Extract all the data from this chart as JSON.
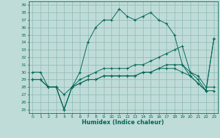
{
  "xlabel": "Humidex (Indice chaleur)",
  "bg_color": "#c0dcd8",
  "grid_color": "#88b8b4",
  "line_color": "#006655",
  "xlim": [
    -0.5,
    23.5
  ],
  "ylim": [
    24.5,
    39.5
  ],
  "yticks": [
    25,
    26,
    27,
    28,
    29,
    30,
    31,
    32,
    33,
    34,
    35,
    36,
    37,
    38,
    39
  ],
  "xticks": [
    0,
    1,
    2,
    3,
    4,
    5,
    6,
    7,
    8,
    9,
    10,
    11,
    12,
    13,
    14,
    15,
    16,
    17,
    18,
    19,
    20,
    21,
    22,
    23
  ],
  "series1_y": [
    30,
    30,
    28,
    28,
    25,
    28,
    30,
    34,
    36,
    37,
    37,
    38.5,
    37.5,
    37,
    37.5,
    38,
    37,
    36.5,
    35,
    31,
    30,
    29.5,
    28,
    28
  ],
  "series2_y": [
    29,
    29,
    28,
    28,
    27,
    28,
    28.5,
    29,
    29,
    29.5,
    29.5,
    29.5,
    29.5,
    29.5,
    30,
    30,
    30.5,
    30.5,
    30.5,
    30,
    29.5,
    28.5,
    27.5,
    27.5
  ],
  "series3_y": [
    29,
    29,
    28,
    28,
    25,
    28,
    28.5,
    29,
    29,
    29.5,
    29.5,
    29.5,
    29.5,
    29.5,
    30,
    30,
    30.5,
    31,
    31,
    31,
    29.5,
    28.5,
    27.5,
    34.5
  ],
  "series4_y": [
    29,
    29,
    28,
    28,
    25,
    28,
    29,
    29.5,
    30,
    30.5,
    30.5,
    30.5,
    30.5,
    31,
    31,
    31.5,
    32,
    32.5,
    33,
    33.5,
    30,
    29,
    27.5,
    34.5
  ]
}
